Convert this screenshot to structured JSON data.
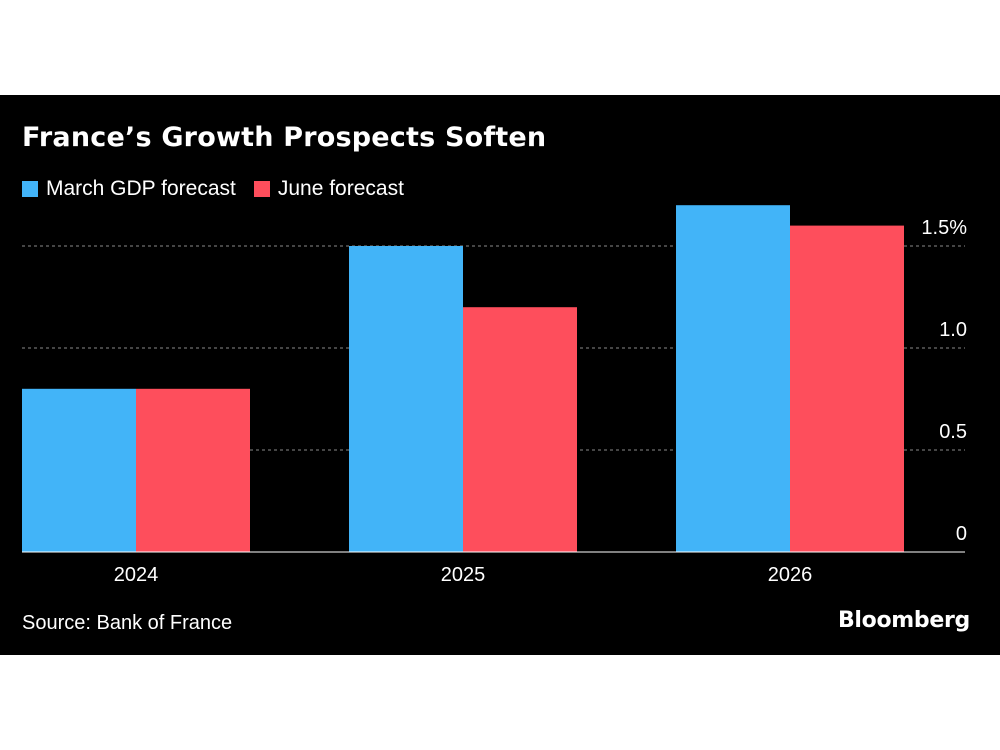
{
  "title": "France’s Growth Prospects Soften",
  "source": "Source: Bank of France",
  "brand": "Bloomberg",
  "colors": {
    "background": "#000000",
    "march": "#42B4F8",
    "june": "#FE4E5C",
    "grid": "#8a8a8a"
  },
  "chart_data": {
    "type": "bar",
    "categories": [
      "2024",
      "2025",
      "2026"
    ],
    "series": [
      {
        "name": "March GDP forecast",
        "values": [
          0.8,
          1.5,
          1.7
        ]
      },
      {
        "name": "June forecast",
        "values": [
          0.8,
          1.2,
          1.6
        ]
      }
    ],
    "y_ticks": [
      "0",
      "0.5",
      "1.0",
      "1.5%"
    ],
    "y_tick_values": [
      0,
      0.5,
      1.0,
      1.5
    ],
    "ylim": [
      0,
      1.7
    ],
    "grid": true,
    "legend": "top-left",
    "y_axis_side": "right"
  }
}
